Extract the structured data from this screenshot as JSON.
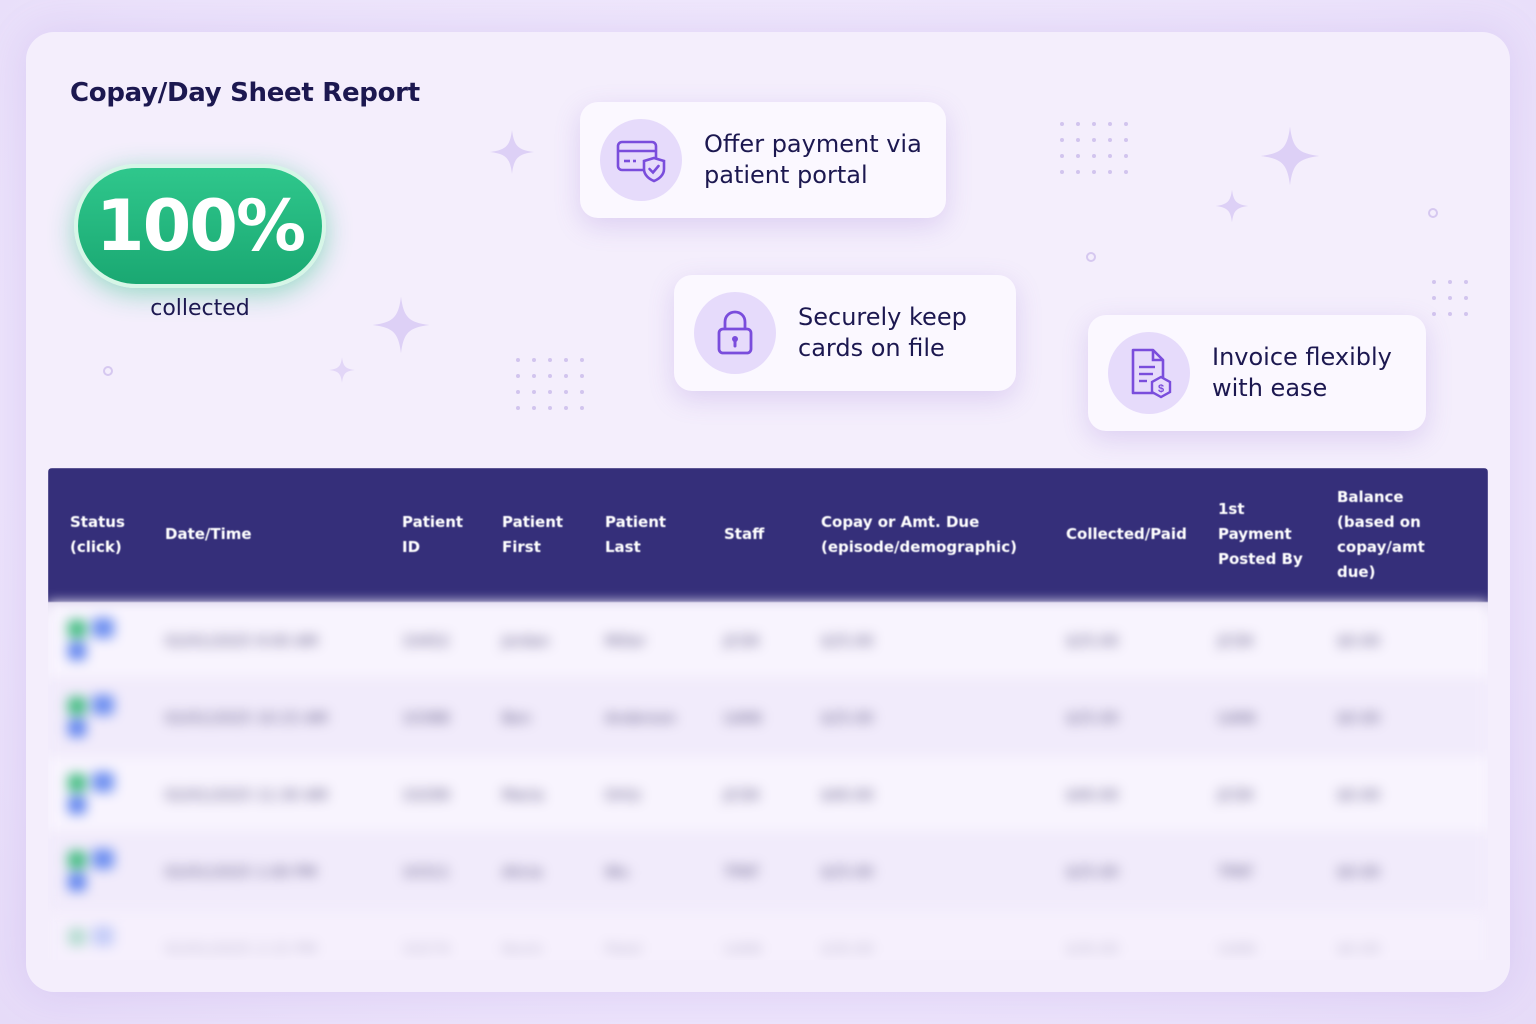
{
  "report": {
    "title": "Copay/Day Sheet Report",
    "stat_value": "100%",
    "stat_caption": "collected"
  },
  "features": [
    {
      "icon": "credit-card-shield-icon",
      "line1": "Offer payment via",
      "line2": "patient portal"
    },
    {
      "icon": "padlock-icon",
      "line1": "Securely keep",
      "line2": "cards on file"
    },
    {
      "icon": "invoice-dollar-icon",
      "line1": "Invoice flexibly",
      "line2": "with ease"
    }
  ],
  "table": {
    "headers": [
      {
        "l1": "Status",
        "l2": "(click)"
      },
      {
        "l1": "Date/Time",
        "l2": ""
      },
      {
        "l1": "Patient",
        "l2": "ID"
      },
      {
        "l1": "Patient",
        "l2": "First"
      },
      {
        "l1": "Patient",
        "l2": "Last"
      },
      {
        "l1": "Staff",
        "l2": ""
      },
      {
        "l1": "Copay or Amt. Due",
        "l2": "(episode/demographic)"
      },
      {
        "l1": "Collected/Paid",
        "l2": ""
      },
      {
        "l1": "1st",
        "l2": "Payment",
        "l3": "Posted By"
      },
      {
        "l1": "Balance",
        "l2": "(based on",
        "l3": "copay/amt",
        "l4": "due)"
      }
    ],
    "rows": [
      [
        "02/01/2025 9:00 AM",
        "10452",
        "Jordan",
        "Miller",
        "JCOX",
        "$25.00",
        "$25.00",
        "JCOX",
        "$0.00"
      ],
      [
        "02/01/2025 10:15 AM",
        "10388",
        "Ben",
        "Anderson",
        "LVAN",
        "$25.00",
        "$25.00",
        "LVAN",
        "$0.00"
      ],
      [
        "02/01/2025 11:30 AM",
        "10299",
        "Maria",
        "Ortiz",
        "JCOX",
        "$40.00",
        "$40.00",
        "JCOX",
        "$0.00"
      ],
      [
        "02/01/2025 1:00 PM",
        "10311",
        "Alicia",
        "Wu",
        "TPAT",
        "$25.00",
        "$25.00",
        "TPAT",
        "$0.00"
      ],
      [
        "02/01/2025 2:15 PM",
        "10274",
        "Kevin",
        "Patel",
        "LVAN",
        "$30.00",
        "$30.00",
        "LVAN",
        "$0.00"
      ]
    ]
  },
  "colors": {
    "accent": "#352f7a",
    "success": "#1fb07a",
    "icon": "#7a4ddc"
  }
}
